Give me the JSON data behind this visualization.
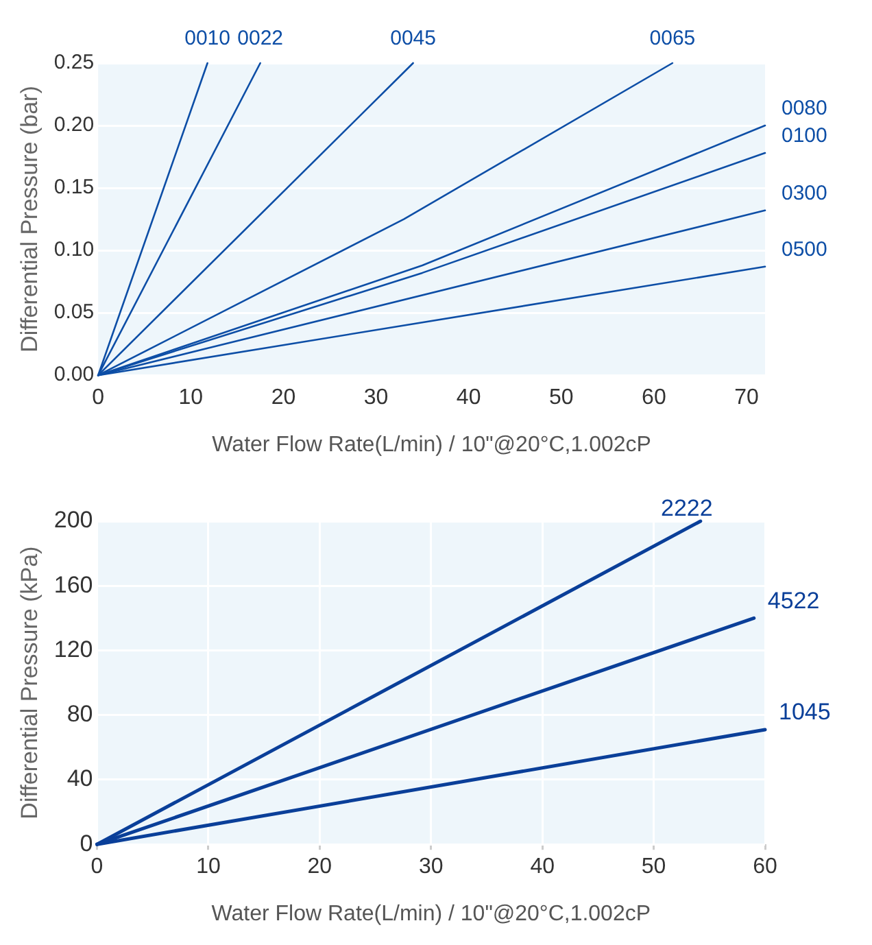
{
  "chart_data": [
    {
      "type": "line",
      "xlabel": "Water Flow Rate(L/min) / 10\"@20°C,1.002cP",
      "ylabel": "Differential Pressure (bar)",
      "xlim": [
        0,
        72
      ],
      "ylim": [
        0,
        0.25
      ],
      "xticks": [
        0,
        10,
        20,
        30,
        40,
        50,
        60,
        70
      ],
      "yticks": [
        {
          "value": 0,
          "label": "0.00"
        },
        {
          "value": 0.05,
          "label": "0.05"
        },
        {
          "value": 0.1,
          "label": "0.10"
        },
        {
          "value": 0.15,
          "label": "0.15"
        },
        {
          "value": 0.2,
          "label": "0.20"
        },
        {
          "value": 0.25,
          "label": "0.25"
        }
      ],
      "grid": "y",
      "legend": false,
      "marker": "none",
      "line_style": "solid",
      "series": [
        {
          "name": "0010",
          "color": "#0d4ea6",
          "x": [
            0,
            11.8
          ],
          "values": [
            0,
            0.25
          ]
        },
        {
          "name": "0022",
          "color": "#0d4ea6",
          "x": [
            0,
            17.5
          ],
          "values": [
            0,
            0.25
          ]
        },
        {
          "name": "0045",
          "color": "#0d4ea6",
          "x": [
            0,
            34
          ],
          "values": [
            0,
            0.25
          ]
        },
        {
          "name": "0065",
          "color": "#0d4ea6",
          "x": [
            0,
            33,
            62
          ],
          "values": [
            0,
            0.125,
            0.25
          ]
        },
        {
          "name": "0080",
          "color": "#0d4ea6",
          "x": [
            0,
            35,
            72
          ],
          "values": [
            0,
            0.088,
            0.2
          ]
        },
        {
          "name": "0100",
          "color": "#0d4ea6",
          "x": [
            0,
            35,
            72
          ],
          "values": [
            0,
            0.082,
            0.178
          ]
        },
        {
          "name": "0300",
          "color": "#0d4ea6",
          "x": [
            0,
            72
          ],
          "values": [
            0,
            0.132
          ]
        },
        {
          "name": "0500",
          "color": "#0d4ea6",
          "x": [
            0,
            72
          ],
          "values": [
            0,
            0.087
          ]
        }
      ]
    },
    {
      "type": "line",
      "xlabel": "Water Flow Rate(L/min) / 10\"@20°C,1.002cP",
      "ylabel": "Differential Pressure (kPa)",
      "xlim": [
        0,
        60
      ],
      "ylim": [
        0,
        200
      ],
      "xticks": [
        0,
        10,
        20,
        30,
        40,
        50,
        60
      ],
      "yticks": [
        0,
        40,
        80,
        120,
        160,
        200
      ],
      "grid": true,
      "legend": false,
      "marker": "none",
      "line_style": "solid",
      "series": [
        {
          "name": "2222",
          "color": "#0a3f99",
          "x": [
            0,
            54.2
          ],
          "values": [
            0,
            200
          ]
        },
        {
          "name": "4522",
          "color": "#0a3f99",
          "x": [
            0,
            59
          ],
          "values": [
            0,
            140
          ]
        },
        {
          "name": "1045",
          "color": "#0a3f99",
          "x": [
            0,
            60
          ],
          "values": [
            0,
            71
          ]
        }
      ]
    }
  ]
}
